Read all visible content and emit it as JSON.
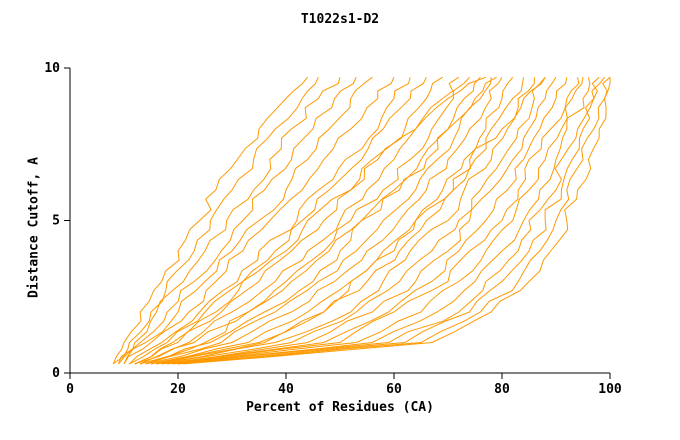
{
  "page": {
    "title": "T1022s1-D2"
  },
  "chart_data": {
    "type": "line",
    "title": "T1022s1-D2",
    "xlabel": "Percent of Residues (CA)",
    "ylabel": "Distance Cutoff, A",
    "xlim": [
      0,
      100
    ],
    "ylim": [
      0,
      10
    ],
    "x_ticks": [
      0,
      20,
      40,
      60,
      80,
      100
    ],
    "y_ticks": [
      0,
      5,
      10
    ],
    "grid": false,
    "legend": "none",
    "line_color": "#ff9900",
    "axis_color": "#000000",
    "y_levels": [
      0.3,
      1,
      2,
      3,
      4,
      5,
      6,
      7,
      8,
      9,
      9.7
    ],
    "curves": [
      [
        8,
        10,
        13,
        17,
        20,
        24,
        27,
        31,
        35,
        40,
        44
      ],
      [
        8,
        11,
        15,
        18,
        23,
        26,
        30,
        34,
        38,
        43,
        46
      ],
      [
        9,
        12,
        16,
        21,
        25,
        29,
        34,
        37,
        41,
        46,
        50
      ],
      [
        9,
        13,
        18,
        23,
        28,
        32,
        36,
        41,
        45,
        49,
        53
      ],
      [
        10,
        14,
        20,
        25,
        30,
        35,
        40,
        44,
        48,
        52,
        56
      ],
      [
        10,
        15,
        22,
        27,
        32,
        37,
        43,
        47,
        52,
        57,
        60
      ],
      [
        11,
        17,
        24,
        31,
        35,
        42,
        46,
        51,
        57,
        60,
        63
      ],
      [
        11,
        18,
        25,
        32,
        38,
        43,
        48,
        54,
        58,
        63,
        66
      ],
      [
        12,
        20,
        28,
        35,
        41,
        47,
        52,
        57,
        62,
        66,
        69
      ],
      [
        12,
        22,
        30,
        38,
        44,
        50,
        55,
        60,
        64,
        69,
        72
      ],
      [
        13,
        23,
        33,
        40,
        47,
        52,
        58,
        63,
        67,
        71,
        74
      ],
      [
        13,
        26,
        36,
        45,
        50,
        54,
        61,
        66,
        70,
        73,
        76
      ],
      [
        14,
        28,
        38,
        46,
        53,
        58,
        64,
        68,
        72,
        76,
        78
      ],
      [
        14,
        30,
        41,
        49,
        55,
        61,
        66,
        70,
        74,
        78,
        80
      ],
      [
        15,
        33,
        44,
        52,
        58,
        64,
        69,
        73,
        77,
        80,
        82
      ],
      [
        15,
        35,
        47,
        55,
        61,
        66,
        71,
        75,
        78,
        82,
        84
      ],
      [
        16,
        38,
        52,
        58,
        63,
        70,
        73,
        78,
        81,
        83,
        86
      ],
      [
        16,
        41,
        53,
        61,
        67,
        72,
        76,
        80,
        83,
        86,
        88
      ],
      [
        17,
        44,
        56,
        64,
        70,
        74,
        78,
        82,
        85,
        88,
        90
      ],
      [
        17,
        47,
        59,
        67,
        72,
        77,
        81,
        84,
        87,
        90,
        92
      ],
      [
        18,
        50,
        60,
        70,
        74,
        80,
        83,
        85,
        89,
        92,
        94
      ],
      [
        18,
        53,
        65,
        72,
        77,
        82,
        85,
        88,
        91,
        93,
        95
      ],
      [
        19,
        56,
        68,
        75,
        80,
        84,
        87,
        90,
        92,
        95,
        96
      ],
      [
        19,
        59,
        72,
        77,
        83,
        85,
        90,
        91,
        94,
        97,
        98
      ],
      [
        20,
        62,
        74,
        80,
        85,
        88,
        91,
        93,
        95,
        97,
        99
      ],
      [
        20,
        65,
        76,
        83,
        87,
        90,
        92,
        95,
        97,
        99,
        100
      ],
      [
        21,
        67,
        78,
        85,
        89,
        92,
        94,
        96,
        98,
        99,
        100
      ],
      [
        14,
        25,
        33,
        41,
        48,
        54,
        60,
        65,
        70,
        75,
        79
      ],
      [
        16,
        36,
        47,
        52,
        60,
        64,
        71,
        74,
        80,
        84,
        88
      ],
      [
        12,
        19,
        27,
        32,
        40,
        44,
        52,
        56,
        64,
        70,
        77
      ]
    ]
  }
}
